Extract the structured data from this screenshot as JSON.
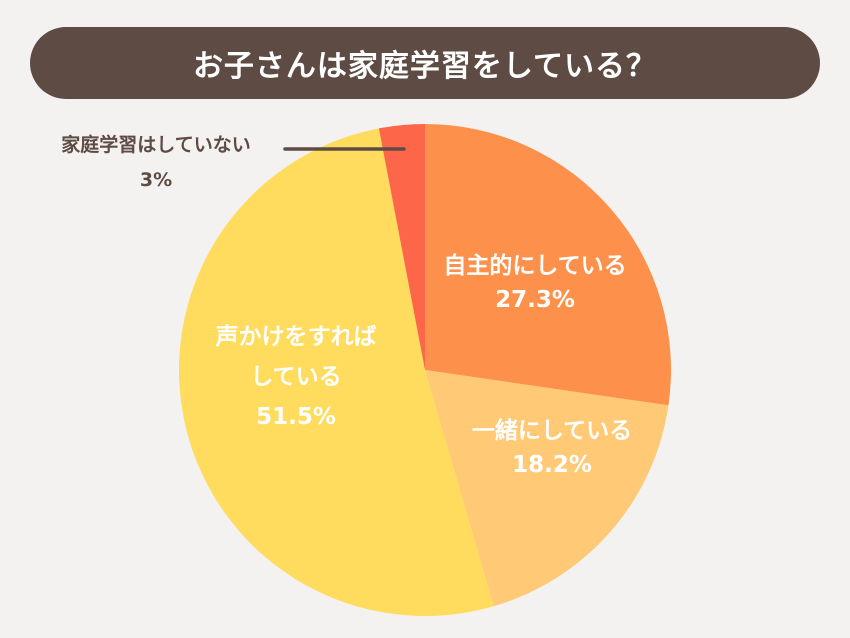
{
  "title": "お子さんは家庭学習をしている？",
  "chart_data": {
    "type": "pie",
    "title": "お子さんは家庭学習をしている？",
    "slices": [
      {
        "label_lines": [
          "自主的にしている"
        ],
        "value": 27.3,
        "value_label": "27.3%",
        "color": "#fd914c"
      },
      {
        "label_lines": [
          "一緒にしている"
        ],
        "value": 18.2,
        "value_label": "18.2%",
        "color": "#ffc975"
      },
      {
        "label_lines": [
          "声かけをすれば",
          "している"
        ],
        "value": 51.5,
        "value_label": "51.5%",
        "color": "#ffdc5d"
      },
      {
        "label_lines": [
          "家庭学習はしていない"
        ],
        "value": 3,
        "value_label": "3%",
        "color": "#fd6648"
      }
    ],
    "start_angle_deg": 0,
    "direction": "clockwise",
    "legend": "none",
    "label_line_color": "#5e4b43",
    "background": "#f4f2f1"
  }
}
